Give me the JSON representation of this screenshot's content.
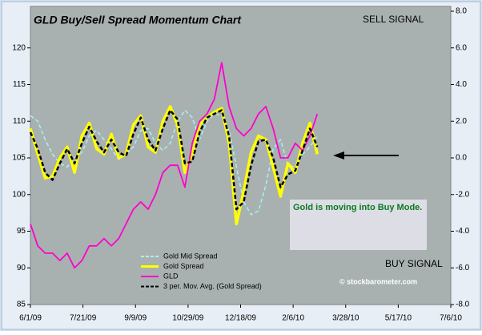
{
  "chart_data": {
    "type": "line",
    "title": "GLD Buy/Sell Spread Momentum Chart",
    "annotations": [
      "SELL SIGNAL",
      "BUY SIGNAL",
      "Gold is moving into Buy Mode.",
      "© stockbarometer.com"
    ],
    "x": [
      "2009-06-01",
      "2009-06-08",
      "2009-06-15",
      "2009-06-22",
      "2009-06-29",
      "2009-07-06",
      "2009-07-13",
      "2009-07-20",
      "2009-07-27",
      "2009-08-03",
      "2009-08-10",
      "2009-08-17",
      "2009-08-24",
      "2009-08-31",
      "2009-09-07",
      "2009-09-14",
      "2009-09-21",
      "2009-09-28",
      "2009-10-05",
      "2009-10-12",
      "2009-10-19",
      "2009-10-26",
      "2009-11-02",
      "2009-11-09",
      "2009-11-16",
      "2009-11-23",
      "2009-11-30",
      "2009-12-07",
      "2009-12-14",
      "2009-12-21",
      "2009-12-28",
      "2010-01-04",
      "2010-01-11",
      "2010-01-18",
      "2010-01-25",
      "2010-02-01",
      "2010-02-08",
      "2010-02-15",
      "2010-02-22",
      "2010-03-01"
    ],
    "xlim": [
      "2009-06-01",
      "2010-07-06"
    ],
    "xticks": [
      {
        "value": "2009-06-01",
        "label": "6/1/09"
      },
      {
        "value": "2009-07-21",
        "label": "7/21/09"
      },
      {
        "value": "2009-09-09",
        "label": "9/9/09"
      },
      {
        "value": "2009-10-29",
        "label": "10/29/09"
      },
      {
        "value": "2009-12-18",
        "label": "12/18/09"
      },
      {
        "value": "2010-02-06",
        "label": "2/6/10"
      },
      {
        "value": "2010-03-28",
        "label": "3/28/10"
      },
      {
        "value": "2010-05-17",
        "label": "5/17/10"
      },
      {
        "value": "2010-07-06",
        "label": "7/6/10"
      }
    ],
    "ylim": [
      85,
      125
    ],
    "yticks": [
      85,
      90,
      95,
      100,
      105,
      110,
      115,
      120
    ],
    "y2lim": [
      -8,
      8
    ],
    "y2ticks": [
      {
        "value": -8,
        "label": "-8.0"
      },
      {
        "value": -6,
        "label": "-6.0"
      },
      {
        "value": -4,
        "label": "-4.0"
      },
      {
        "value": -2,
        "label": "-2.0"
      },
      {
        "value": 0,
        "label": "0.0"
      },
      {
        "value": 2,
        "label": "2.0"
      },
      {
        "value": 4,
        "label": "4.0"
      },
      {
        "value": 6,
        "label": "6.0"
      },
      {
        "value": 8,
        "label": "8.0"
      }
    ],
    "grid": false,
    "legend": "lower center",
    "series": [
      {
        "name": "Gold Mid Spread",
        "color": "#a8f0f4",
        "style": "dashed",
        "axis": "y2",
        "values": [
          2.3,
          2.0,
          1.0,
          0.2,
          -0.3,
          -0.5,
          0.0,
          0.3,
          1.2,
          1.5,
          1.0,
          0.5,
          -0.1,
          0.2,
          0.6,
          1.5,
          1.6,
          0.8,
          0.4,
          0.8,
          2.0,
          2.6,
          2.2,
          1.0,
          2.0,
          2.4,
          2.3,
          1.5,
          -0.5,
          -2.4,
          -3.1,
          -2.9,
          -1.5,
          0.5,
          1.0,
          -0.4,
          -0.5,
          0.2,
          0.6,
          1.2
        ]
      },
      {
        "name": "Gold  Spread",
        "color": "#ffff00",
        "style": "solid",
        "axis": "y2",
        "values": [
          1.6,
          0.2,
          -1.1,
          -1.0,
          0,
          0.6,
          -0.8,
          1.2,
          1.9,
          0.5,
          0.2,
          1.3,
          0,
          0.2,
          1.8,
          2.3,
          0.6,
          0.3,
          2.0,
          2.8,
          1.8,
          -0.8,
          0.2,
          1.8,
          2.2,
          2.5,
          2.7,
          0.8,
          -3.6,
          -1.8,
          0.3,
          1.2,
          1.0,
          -0.5,
          -2.1,
          -0.3,
          -0.8,
          0.8,
          1.9,
          0.2
        ]
      },
      {
        "name": "GLD",
        "color": "#ff00cc",
        "style": "solid",
        "axis": "y",
        "values": [
          96,
          93,
          92,
          92,
          91,
          92,
          90,
          91,
          93,
          93,
          94,
          93,
          94,
          96,
          98,
          99,
          98,
          100,
          103,
          104,
          104,
          101,
          107,
          110,
          111,
          113,
          118,
          112,
          109,
          108,
          109,
          111,
          112,
          109,
          105,
          105,
          107,
          106,
          108,
          111
        ]
      },
      {
        "name": "3 per. Mov. Avg. (Gold  Spread)",
        "color": "#000000",
        "style": "dashed",
        "axis": "y2",
        "values": [
          1.4,
          0.5,
          -0.8,
          -1.2,
          -0.3,
          0.5,
          -0.3,
          0.8,
          1.7,
          0.9,
          0.3,
          1.0,
          0.3,
          0.1,
          1.3,
          2.2,
          1.0,
          0.4,
          1.6,
          2.6,
          2.1,
          -0.3,
          -0.2,
          1.4,
          2.2,
          2.4,
          2.6,
          1.2,
          -2.8,
          -2.4,
          -0.4,
          0.9,
          1.0,
          0.0,
          -1.6,
          -0.9,
          -0.7,
          0.4,
          1.6,
          0.6
        ]
      }
    ]
  }
}
